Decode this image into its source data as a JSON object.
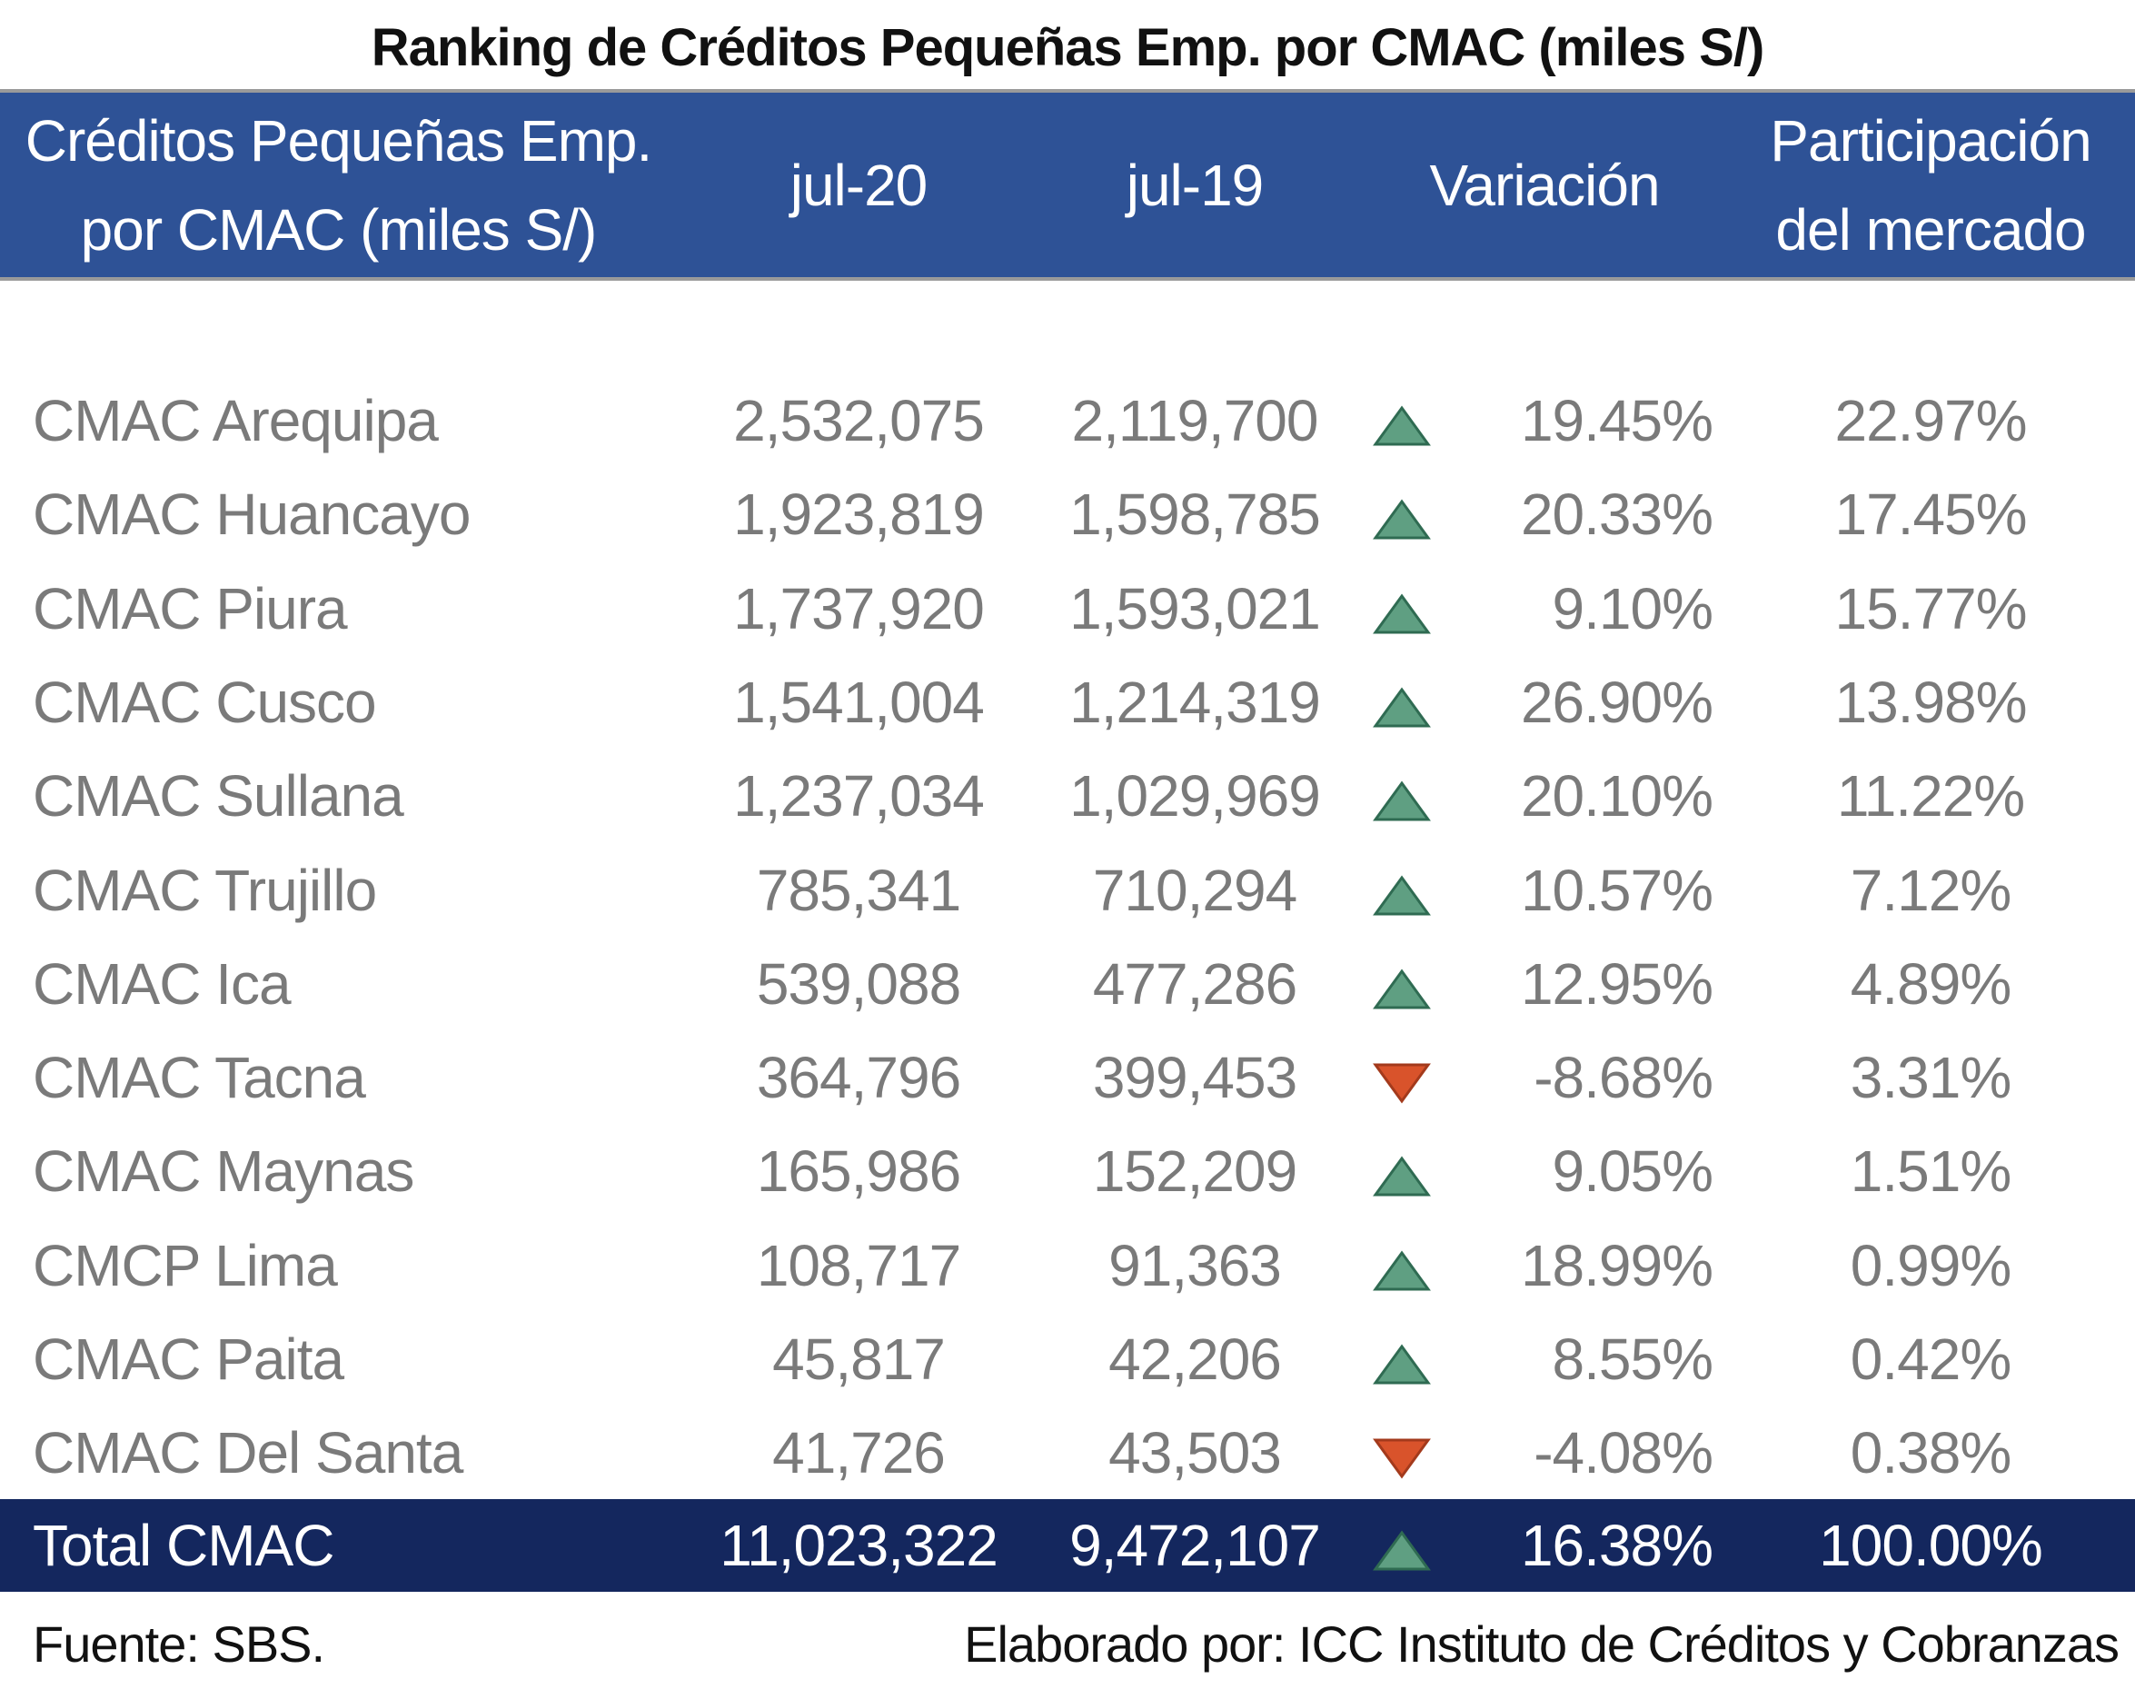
{
  "title": "Ranking de Créditos Pequeñas Emp. por CMAC (miles S/)",
  "columns": {
    "name": "Créditos Pequeñas Emp.\npor CMAC (miles S/)",
    "jul20": "jul-20",
    "jul19": "jul-19",
    "variacion": "Variación",
    "participacion": "Participación\ndel mercado"
  },
  "rows": [
    {
      "name": "CMAC Arequipa",
      "jul20": "2,532,075",
      "jul19": "2,119,700",
      "trend": "up",
      "variacion": "19.45%",
      "participacion": "22.97%"
    },
    {
      "name": "CMAC Huancayo",
      "jul20": "1,923,819",
      "jul19": "1,598,785",
      "trend": "up",
      "variacion": "20.33%",
      "participacion": "17.45%"
    },
    {
      "name": "CMAC Piura",
      "jul20": "1,737,920",
      "jul19": "1,593,021",
      "trend": "up",
      "variacion": "9.10%",
      "participacion": "15.77%"
    },
    {
      "name": "CMAC Cusco",
      "jul20": "1,541,004",
      "jul19": "1,214,319",
      "trend": "up",
      "variacion": "26.90%",
      "participacion": "13.98%"
    },
    {
      "name": "CMAC Sullana",
      "jul20": "1,237,034",
      "jul19": "1,029,969",
      "trend": "up",
      "variacion": "20.10%",
      "participacion": "11.22%"
    },
    {
      "name": "CMAC Trujillo",
      "jul20": "785,341",
      "jul19": "710,294",
      "trend": "up",
      "variacion": "10.57%",
      "participacion": "7.12%"
    },
    {
      "name": "CMAC Ica",
      "jul20": "539,088",
      "jul19": "477,286",
      "trend": "up",
      "variacion": "12.95%",
      "participacion": "4.89%"
    },
    {
      "name": "CMAC Tacna",
      "jul20": "364,796",
      "jul19": "399,453",
      "trend": "down",
      "variacion": "-8.68%",
      "participacion": "3.31%"
    },
    {
      "name": "CMAC Maynas",
      "jul20": "165,986",
      "jul19": "152,209",
      "trend": "up",
      "variacion": "9.05%",
      "participacion": "1.51%"
    },
    {
      "name": "CMCP Lima",
      "jul20": "108,717",
      "jul19": "91,363",
      "trend": "up",
      "variacion": "18.99%",
      "participacion": "0.99%"
    },
    {
      "name": "CMAC Paita",
      "jul20": "45,817",
      "jul19": "42,206",
      "trend": "up",
      "variacion": "8.55%",
      "participacion": "0.42%"
    },
    {
      "name": "CMAC Del Santa",
      "jul20": "41,726",
      "jul19": "43,503",
      "trend": "down",
      "variacion": "-4.08%",
      "participacion": "0.38%"
    }
  ],
  "total": {
    "name": "Total CMAC",
    "jul20": "11,023,322",
    "jul19": "9,472,107",
    "trend": "up",
    "variacion": "16.38%",
    "participacion": "100.00%"
  },
  "footer": {
    "source": "Fuente: SBS.",
    "credit": "Elaborado por: ICC Instituto de Créditos y Cobranzas"
  },
  "colors": {
    "header_bg": "#2e5296",
    "total_bg": "#14275e",
    "up_arrow": "#5f9f82",
    "down_arrow": "#d9532b"
  },
  "icons": {
    "up": "triangle-up-icon",
    "down": "triangle-down-icon"
  }
}
